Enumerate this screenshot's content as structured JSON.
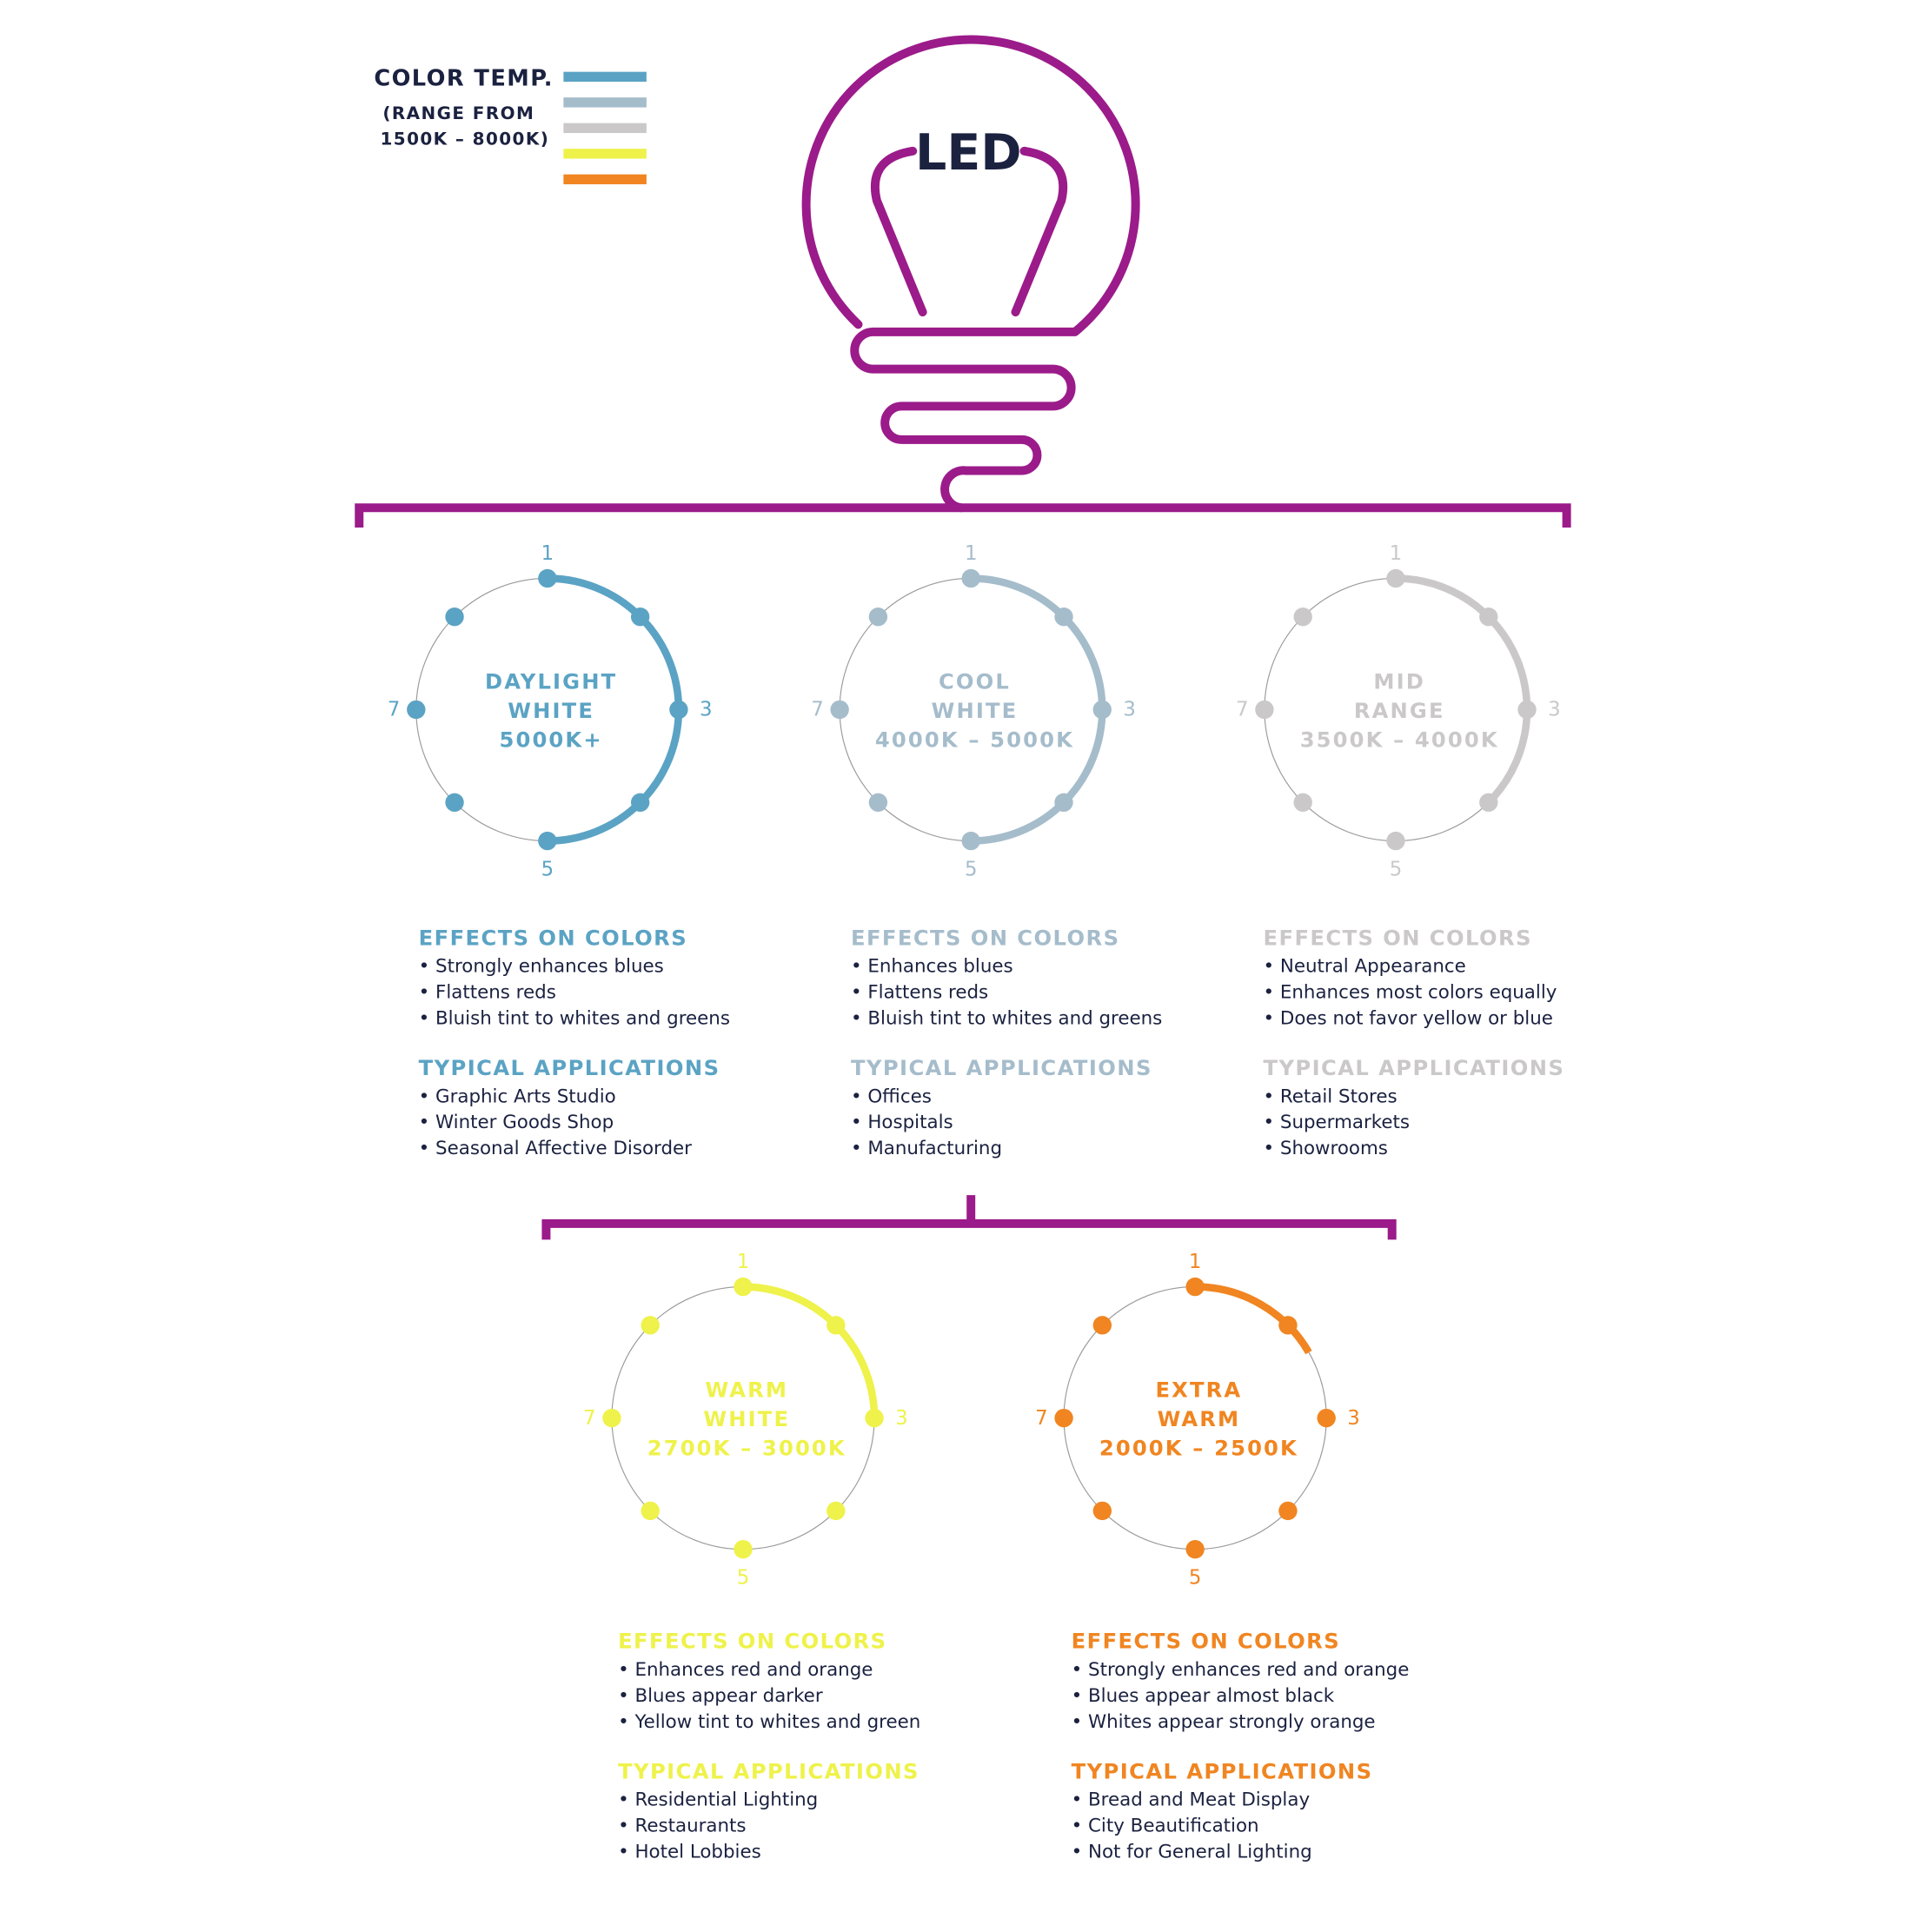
{
  "legend": {
    "title": "COLOR TEMP.",
    "range_line1": "(RANGE FROM",
    "range_line2": "1500K – 8000K)",
    "swatches": [
      "#5ba3c4",
      "#a5bccb",
      "#cbc8ca",
      "#eef24a",
      "#f08521"
    ]
  },
  "bulb": {
    "label": "LED",
    "color": "#9b1b8a",
    "label_color": "#1b2240"
  },
  "position_labels": [
    "1",
    "3",
    "5",
    "7"
  ],
  "types": [
    {
      "name_lines": [
        "DAYLIGHT",
        "WHITE",
        "5000K+"
      ],
      "color": "#5ba3c4",
      "highlight_degrees": 180,
      "effects_title": "EFFECTS ON COLORS",
      "effects": [
        "Strongly enhances blues",
        "Flattens reds",
        "Bluish tint to whites and greens"
      ],
      "apps_title": "TYPICAL APPLICATIONS",
      "apps": [
        "Graphic Arts Studio",
        "Winter Goods Shop",
        "Seasonal Affective Disorder"
      ]
    },
    {
      "name_lines": [
        "COOL",
        "WHITE",
        "4000K – 5000K"
      ],
      "color": "#a5bccb",
      "highlight_degrees": 180,
      "effects_title": "EFFECTS ON COLORS",
      "effects": [
        "Enhances blues",
        "Flattens reds",
        "Bluish tint to whites and greens"
      ],
      "apps_title": "TYPICAL APPLICATIONS",
      "apps": [
        "Offices",
        "Hospitals",
        "Manufacturing"
      ]
    },
    {
      "name_lines": [
        "MID",
        "RANGE",
        "3500K – 4000K"
      ],
      "color": "#cbc8ca",
      "highlight_degrees": 135,
      "effects_title": "EFFECTS ON COLORS",
      "effects": [
        "Neutral Appearance",
        "Enhances most colors equally",
        "Does not favor yellow or blue"
      ],
      "apps_title": "TYPICAL APPLICATIONS",
      "apps": [
        "Retail Stores",
        "Supermarkets",
        "Showrooms"
      ]
    },
    {
      "name_lines": [
        "WARM",
        "WHITE",
        "2700K – 3000K"
      ],
      "color": "#eef24a",
      "highlight_degrees": 90,
      "effects_title": "EFFECTS ON COLORS",
      "effects": [
        "Enhances red and orange",
        "Blues appear darker",
        "Yellow tint to whites and green"
      ],
      "apps_title": "TYPICAL APPLICATIONS",
      "apps": [
        "Residential Lighting",
        "Restaurants",
        "Hotel Lobbies"
      ]
    },
    {
      "name_lines": [
        "EXTRA",
        "WARM",
        "2000K – 2500K"
      ],
      "color": "#f08521",
      "highlight_degrees": 60,
      "effects_title": "EFFECTS ON COLORS",
      "effects": [
        "Strongly enhances red and orange",
        "Blues appear almost black",
        "Whites appear strongly orange"
      ],
      "apps_title": "TYPICAL APPLICATIONS",
      "apps": [
        "Bread and Meat Display",
        "City Beautification",
        "Not for General Lighting"
      ]
    }
  ]
}
